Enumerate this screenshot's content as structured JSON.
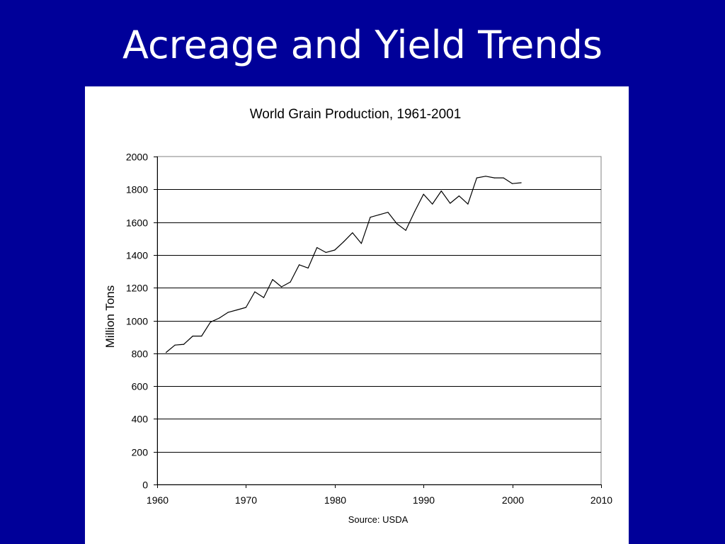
{
  "slide": {
    "title": "Acreage and Yield Trends"
  },
  "colors": {
    "background": "#000099",
    "panel": "#ffffff",
    "line": "#000000",
    "grid": "#000000",
    "plot_border": "#808080"
  },
  "chart_data": {
    "type": "line",
    "title": "World Grain Production, 1961-2001",
    "xlabel": "",
    "ylabel": "Million Tons",
    "source": "Source: USDA",
    "xlim": [
      1960,
      2010
    ],
    "ylim": [
      0,
      2000
    ],
    "xticks": [
      1960,
      1970,
      1980,
      1990,
      2000,
      2010
    ],
    "yticks": [
      0,
      200,
      400,
      600,
      800,
      1000,
      1200,
      1400,
      1600,
      1800,
      2000
    ],
    "grid": "horizontal",
    "series": [
      {
        "x": [
          1961,
          1962,
          1963,
          1964,
          1965,
          1966,
          1967,
          1968,
          1969,
          1970,
          1971,
          1972,
          1973,
          1974,
          1975,
          1976,
          1977,
          1978,
          1979,
          1980,
          1981,
          1982,
          1983,
          1984,
          1985,
          1986,
          1987,
          1988,
          1989,
          1990,
          1991,
          1992,
          1993,
          1994,
          1995,
          1996,
          1997,
          1998,
          1999,
          2000,
          2001
        ],
        "y": [
          805,
          850,
          855,
          905,
          905,
          990,
          1015,
          1050,
          1065,
          1080,
          1175,
          1140,
          1250,
          1205,
          1235,
          1340,
          1320,
          1445,
          1415,
          1430,
          1480,
          1535,
          1470,
          1630,
          1645,
          1660,
          1590,
          1550,
          1665,
          1770,
          1710,
          1790,
          1715,
          1760,
          1710,
          1870,
          1880,
          1870,
          1870,
          1835,
          1840
        ]
      }
    ]
  }
}
